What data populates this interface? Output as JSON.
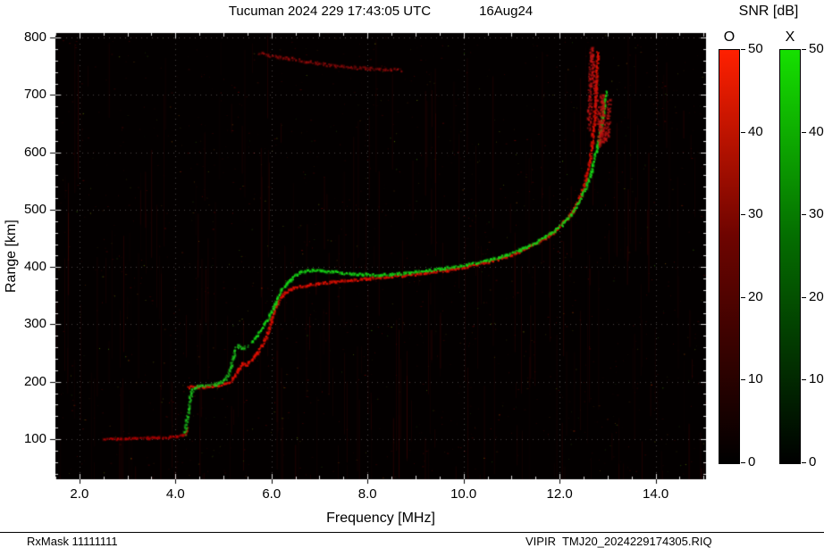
{
  "header": {
    "title": "Tucuman 2024 229 17:43:05 UTC",
    "date": "16Aug24"
  },
  "axes": {
    "xlabel": "Frequency [MHz]",
    "ylabel": "Range [km]"
  },
  "colorbar_panel": {
    "title": "SNR [dB]",
    "tick_values": [
      0,
      10,
      20,
      30,
      40,
      50
    ],
    "bars": [
      {
        "label": "O",
        "stops": [
          "#000000",
          "#6e0400",
          "#ff2000"
        ]
      },
      {
        "label": "X",
        "stops": [
          "#000000",
          "#046e00",
          "#16e000"
        ]
      }
    ]
  },
  "footer": {
    "left": "RxMask 11111111",
    "right": "VIPIR  TMJ20_2024229174305.RIQ"
  },
  "chart_data": {
    "type": "scatter",
    "title": "Tucuman 2024 229 17:43:05 UTC 16Aug24",
    "xlabel": "Frequency [MHz]",
    "ylabel": "Range [km]",
    "xlim": [
      1.5,
      15.05
    ],
    "ylim": [
      30,
      808
    ],
    "x_ticks": [
      2,
      4,
      6,
      8,
      10,
      12,
      14
    ],
    "x_tick_labels": [
      "2.0",
      "4.0",
      "6.0",
      "8.0",
      "10.0",
      "12.0",
      "14.0"
    ],
    "y_ticks": [
      100,
      200,
      300,
      400,
      500,
      600,
      700,
      800
    ],
    "y_tick_labels": [
      "100",
      "200",
      "300",
      "400",
      "500",
      "600",
      "700",
      "800"
    ],
    "grid": "dotted-white-at-major-ticks",
    "legend": {
      "label": "SNR [dB]",
      "modes": [
        "O",
        "X"
      ],
      "range": [
        0,
        50
      ]
    },
    "background": "#030000",
    "noise": {
      "seed": 13,
      "red_streaks": 260,
      "red_dots": 1600,
      "green_dots": 650
    },
    "series": [
      {
        "name": "O-mode E-layer trace",
        "color": "#c00000",
        "alpha": 0.7,
        "size": 2,
        "jitter": 1.2,
        "points": [
          [
            2.5,
            100
          ],
          [
            2.8,
            100
          ],
          [
            3.2,
            101
          ],
          [
            3.6,
            102
          ],
          [
            3.9,
            103
          ],
          [
            4.05,
            104
          ],
          [
            4.15,
            106
          ],
          [
            4.22,
            110
          ],
          [
            4.28,
            118
          ]
        ]
      },
      {
        "name": "O-mode F-layer trace",
        "color": "#e01000",
        "alpha": 1.0,
        "size": 2,
        "jitter": 1.3,
        "points": [
          [
            4.25,
            190
          ],
          [
            4.6,
            191
          ],
          [
            4.9,
            193
          ],
          [
            5.1,
            197
          ],
          [
            5.2,
            205
          ],
          [
            5.3,
            220
          ],
          [
            5.4,
            232
          ],
          [
            5.5,
            228
          ],
          [
            5.6,
            238
          ],
          [
            5.7,
            250
          ],
          [
            5.8,
            262
          ],
          [
            5.9,
            278
          ],
          [
            5.95,
            292
          ],
          [
            6.0,
            305
          ],
          [
            6.05,
            320
          ],
          [
            6.1,
            333
          ],
          [
            6.2,
            347
          ],
          [
            6.3,
            356
          ],
          [
            6.45,
            362
          ],
          [
            6.6,
            366
          ],
          [
            6.8,
            369
          ],
          [
            7.0,
            371
          ],
          [
            7.3,
            374
          ],
          [
            7.6,
            376
          ],
          [
            8.0,
            379
          ],
          [
            8.4,
            382
          ],
          [
            8.8,
            385
          ],
          [
            9.2,
            389
          ],
          [
            9.6,
            393
          ],
          [
            10.0,
            399
          ],
          [
            10.4,
            406
          ],
          [
            10.8,
            415
          ],
          [
            11.1,
            424
          ],
          [
            11.4,
            436
          ],
          [
            11.7,
            450
          ],
          [
            11.95,
            465
          ],
          [
            12.15,
            482
          ],
          [
            12.3,
            500
          ],
          [
            12.45,
            525
          ],
          [
            12.55,
            552
          ],
          [
            12.62,
            580
          ],
          [
            12.68,
            612
          ],
          [
            12.72,
            645
          ],
          [
            12.75,
            680
          ],
          [
            12.77,
            715
          ],
          [
            12.79,
            750
          ],
          [
            12.8,
            775
          ]
        ]
      },
      {
        "name": "X-mode retardation and low trace",
        "color": "#1fcc1f",
        "alpha": 0.8,
        "size": 2,
        "jitter": 1.5,
        "points": [
          [
            4.2,
            108
          ],
          [
            4.22,
            120
          ],
          [
            4.25,
            135
          ],
          [
            4.27,
            150
          ],
          [
            4.3,
            165
          ],
          [
            4.33,
            178
          ],
          [
            4.38,
            188
          ],
          [
            4.5,
            192
          ],
          [
            4.7,
            193
          ],
          [
            4.9,
            196
          ],
          [
            5.05,
            205
          ],
          [
            5.15,
            222
          ],
          [
            5.2,
            240
          ],
          [
            5.25,
            255
          ],
          [
            5.3,
            262
          ],
          [
            5.4,
            258
          ],
          [
            5.5,
            262
          ]
        ]
      },
      {
        "name": "X-mode F-layer trace",
        "color": "#17d417",
        "alpha": 1.0,
        "size": 2,
        "jitter": 1.3,
        "points": [
          [
            5.6,
            270
          ],
          [
            5.7,
            280
          ],
          [
            5.8,
            292
          ],
          [
            5.9,
            305
          ],
          [
            6.0,
            322
          ],
          [
            6.1,
            340
          ],
          [
            6.2,
            356
          ],
          [
            6.3,
            368
          ],
          [
            6.4,
            378
          ],
          [
            6.5,
            385
          ],
          [
            6.6,
            390
          ],
          [
            6.75,
            393
          ],
          [
            6.9,
            394
          ],
          [
            7.1,
            393
          ],
          [
            7.3,
            391
          ],
          [
            7.5,
            389
          ],
          [
            7.8,
            387
          ],
          [
            8.1,
            386
          ],
          [
            8.5,
            387
          ],
          [
            8.9,
            390
          ],
          [
            9.3,
            394
          ],
          [
            9.7,
            398
          ],
          [
            10.1,
            404
          ],
          [
            10.5,
            411
          ],
          [
            10.9,
            420
          ],
          [
            11.2,
            430
          ],
          [
            11.5,
            442
          ],
          [
            11.8,
            457
          ],
          [
            12.05,
            473
          ],
          [
            12.25,
            492
          ],
          [
            12.4,
            512
          ],
          [
            12.55,
            538
          ],
          [
            12.67,
            568
          ],
          [
            12.77,
            600
          ],
          [
            12.85,
            635
          ],
          [
            12.92,
            672
          ],
          [
            12.97,
            705
          ]
        ]
      },
      {
        "name": "O-mode second-hop trace",
        "color": "#b50f0f",
        "alpha": 0.55,
        "size": 2,
        "jitter": 1.6,
        "points": [
          [
            5.75,
            772
          ],
          [
            6.0,
            768
          ],
          [
            6.3,
            764
          ],
          [
            6.6,
            760
          ],
          [
            6.9,
            756
          ],
          [
            7.2,
            752
          ],
          [
            7.5,
            749
          ],
          [
            7.8,
            747
          ],
          [
            8.1,
            745
          ],
          [
            8.4,
            744
          ],
          [
            8.7,
            743
          ]
        ]
      },
      {
        "name": "O-mode spread near critical frequency",
        "color": "#c41414",
        "alpha": 0.8,
        "size": 2,
        "jitter": 2.2,
        "points": [
          [
            12.62,
            640
          ],
          [
            12.63,
            670
          ],
          [
            12.64,
            700
          ],
          [
            12.65,
            730
          ],
          [
            12.66,
            758
          ],
          [
            12.67,
            780
          ],
          [
            12.86,
            610
          ],
          [
            12.87,
            640
          ],
          [
            12.88,
            672
          ],
          [
            12.89,
            700
          ],
          [
            12.9,
            665
          ],
          [
            12.95,
            618
          ],
          [
            13.0,
            630
          ],
          [
            13.02,
            660
          ],
          [
            13.04,
            690
          ]
        ]
      }
    ]
  }
}
